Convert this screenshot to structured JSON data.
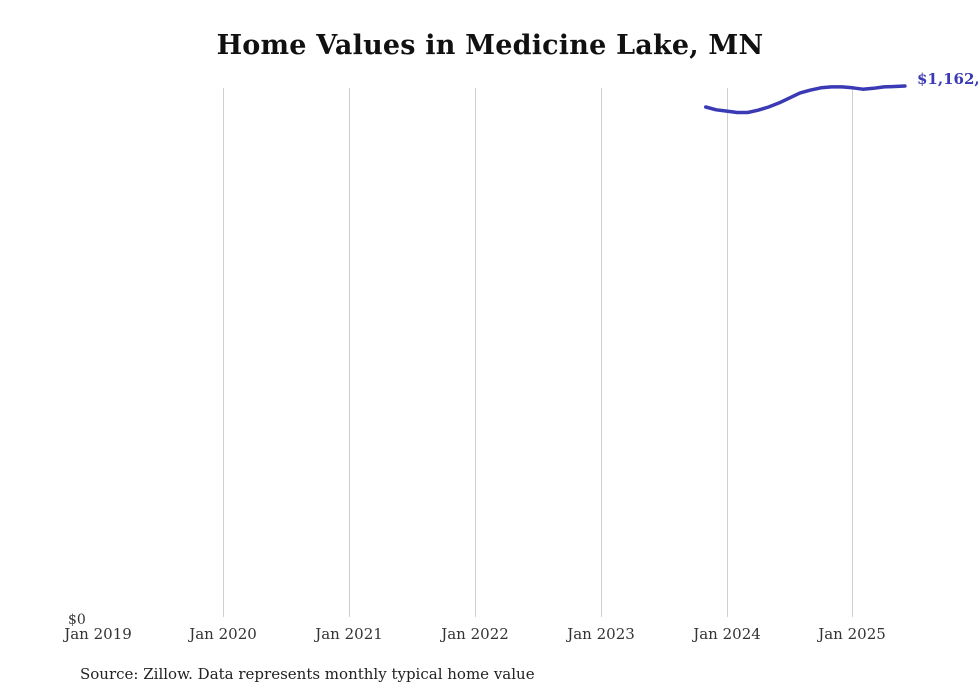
{
  "title": "Home Values in Medicine Lake, MN",
  "source_note": "Source: Zillow. Data represents monthly typical home value",
  "axis": {
    "y_zero_label": "$0"
  },
  "end_label": "$1,162,",
  "line_color": "#3b3ab5",
  "chart_data": {
    "type": "line",
    "title": "Home Values in Medicine Lake, MN",
    "xlabel": "",
    "ylabel": "",
    "x_tick_labels": [
      "Jan 2019",
      "Jan 2020",
      "Jan 2021",
      "Jan 2022",
      "Jan 2023",
      "Jan 2024",
      "Jan 2025"
    ],
    "y_tick_labels": [
      "$0"
    ],
    "ylim": [
      0,
      1230000
    ],
    "grid": "vertical-only",
    "legend": "none",
    "annotation": "$1,162,",
    "series": [
      {
        "name": "Monthly typical home value",
        "points": [
          [
            "2023-11",
            1116000
          ],
          [
            "2023-12",
            1110000
          ],
          [
            "2024-01",
            1107000
          ],
          [
            "2024-02",
            1104000
          ],
          [
            "2024-03",
            1104000
          ],
          [
            "2024-04",
            1109000
          ],
          [
            "2024-05",
            1116000
          ],
          [
            "2024-06",
            1125000
          ],
          [
            "2024-07",
            1136000
          ],
          [
            "2024-08",
            1147000
          ],
          [
            "2024-09",
            1153000
          ],
          [
            "2024-10",
            1158000
          ],
          [
            "2024-11",
            1160000
          ],
          [
            "2024-12",
            1160000
          ],
          [
            "2025-01",
            1158000
          ],
          [
            "2025-02",
            1155000
          ],
          [
            "2025-03",
            1157000
          ],
          [
            "2025-04",
            1160000
          ],
          [
            "2025-05",
            1161000
          ],
          [
            "2025-06",
            1162000
          ]
        ]
      }
    ]
  }
}
